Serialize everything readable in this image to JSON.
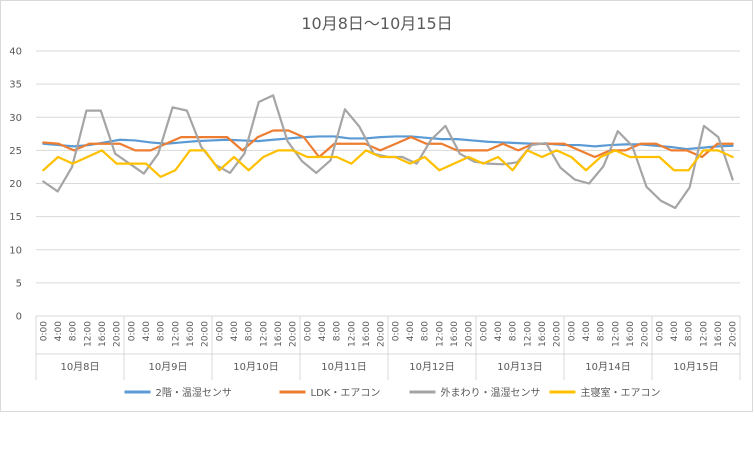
{
  "chart_data": {
    "type": "line",
    "title": "10月8日～10月15日",
    "xlabel": "",
    "ylabel": "",
    "ylim": [
      0,
      40
    ],
    "yticks": [
      0,
      5,
      10,
      15,
      20,
      25,
      30,
      35,
      40
    ],
    "grid": true,
    "legend": "bottom",
    "hour_labels": [
      "0:00",
      "4:00",
      "8:00",
      "12:00",
      "16:00",
      "20:00"
    ],
    "days": [
      "10月8日",
      "10月9日",
      "10月10日",
      "10月11日",
      "10月12日",
      "10月13日",
      "10月14日",
      "10月15日"
    ],
    "series": [
      {
        "name": "2階・温湿センサ",
        "color": "#5B9BD5",
        "values": [
          26.0,
          25.8,
          25.6,
          25.8,
          26.2,
          26.6,
          26.5,
          26.2,
          26.0,
          26.2,
          26.4,
          26.5,
          26.6,
          26.5,
          26.4,
          26.6,
          26.8,
          27.0,
          27.1,
          27.1,
          26.8,
          26.8,
          27.0,
          27.1,
          27.1,
          26.9,
          26.7,
          26.7,
          26.5,
          26.3,
          26.2,
          26.1,
          26.0,
          26.0,
          25.8,
          25.8,
          25.6,
          25.8,
          25.9,
          25.9,
          25.7,
          25.5,
          25.2,
          25.4,
          25.6,
          25.7
        ]
      },
      {
        "name": "LDK・エアコン",
        "color": "#ED7D31",
        "values": [
          26.2,
          26.0,
          25.0,
          26.0,
          26.0,
          26.0,
          25.0,
          25.0,
          26.0,
          27.0,
          27.0,
          27.0,
          27.0,
          25.0,
          27.0,
          28.0,
          28.0,
          27.0,
          24.0,
          26.0,
          26.0,
          26.0,
          25.0,
          26.0,
          27.0,
          26.0,
          26.0,
          25.0,
          25.0,
          25.0,
          26.0,
          25.0,
          26.0,
          26.0,
          26.0,
          25.0,
          24.0,
          25.0,
          25.0,
          26.0,
          26.0,
          25.0,
          25.0,
          24.0,
          26.0,
          26.0
        ]
      },
      {
        "name": "外まわり・温湿センサ",
        "color": "#A5A5A5",
        "values": [
          20.3,
          18.8,
          22.5,
          31.0,
          31.0,
          24.5,
          23.0,
          21.5,
          24.5,
          31.5,
          31.0,
          25.5,
          22.8,
          21.6,
          24.5,
          32.3,
          33.3,
          26.4,
          23.4,
          21.6,
          23.5,
          31.2,
          28.6,
          24.5,
          24.0,
          24.0,
          23.0,
          26.6,
          28.7,
          24.5,
          23.3,
          23.0,
          22.9,
          23.2,
          25.8,
          26.1,
          22.4,
          20.6,
          20.0,
          22.6,
          27.9,
          25.7,
          19.5,
          17.4,
          16.3,
          19.4,
          28.7,
          27.0,
          20.6
        ]
      },
      {
        "name": "主寝室・エアコン",
        "color": "#FFC000",
        "values": [
          22.0,
          24.0,
          23.0,
          24.0,
          25.0,
          23.0,
          23.0,
          23.0,
          21.0,
          22.0,
          25.0,
          25.0,
          22.0,
          24.0,
          22.0,
          24.0,
          25.0,
          25.0,
          24.0,
          24.0,
          24.0,
          23.0,
          25.0,
          24.0,
          24.0,
          23.0,
          24.0,
          22.0,
          23.0,
          24.0,
          23.0,
          24.0,
          22.0,
          25.0,
          24.0,
          25.0,
          24.0,
          22.0,
          24.0,
          25.0,
          24.0,
          24.0,
          24.0,
          22.0,
          22.0,
          25.0,
          25.0,
          24.0
        ]
      }
    ]
  }
}
